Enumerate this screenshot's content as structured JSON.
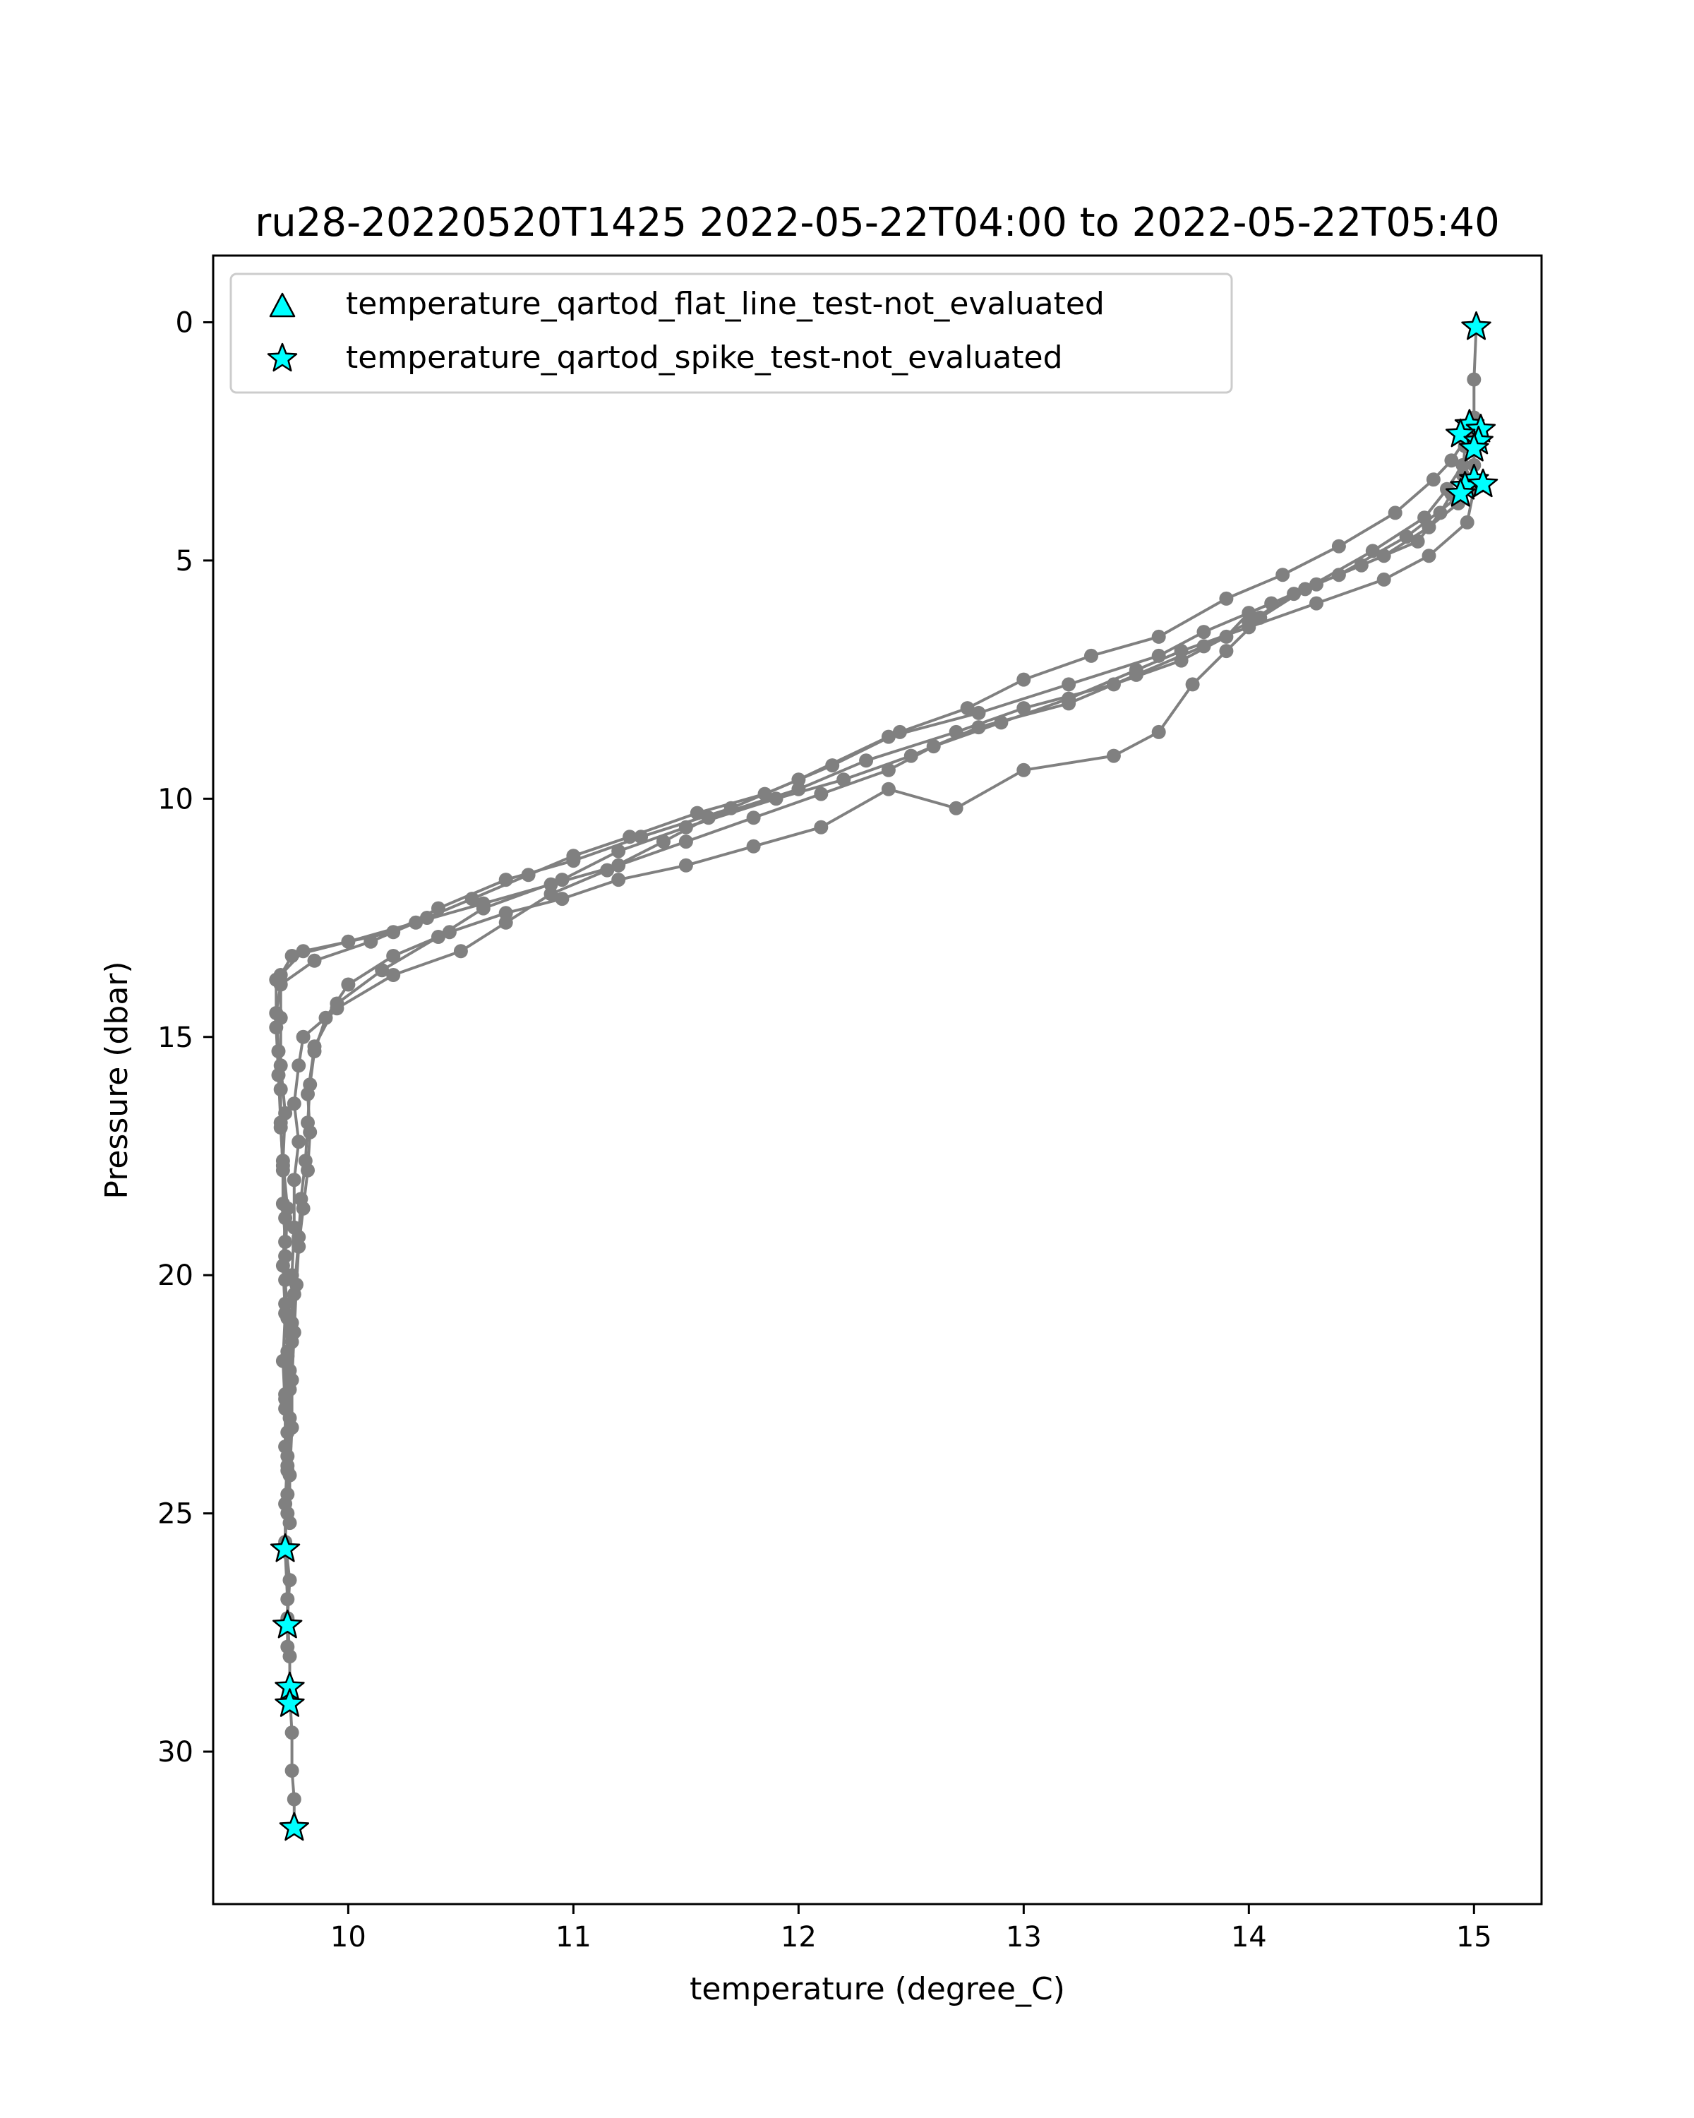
{
  "chart_data": {
    "type": "line",
    "title": "ru28-20220520T1425 2022-05-22T04:00 to 2022-05-22T05:40",
    "xlabel": "temperature (degree_C)",
    "ylabel": "Pressure (dbar)",
    "xlim": [
      9.4,
      15.3
    ],
    "ylim": [
      33.2,
      -1.4
    ],
    "xticks": [
      10,
      11,
      12,
      13,
      14,
      15
    ],
    "yticks": [
      0,
      5,
      10,
      15,
      20,
      25,
      30
    ],
    "xtick_labels": [
      "10",
      "11",
      "12",
      "13",
      "14",
      "15"
    ],
    "ytick_labels": [
      "0",
      "5",
      "10",
      "15",
      "20",
      "25",
      "30"
    ],
    "grid": false,
    "legend_position": "top-left",
    "line_color": "#808080",
    "marker_fill": "#00ffff",
    "legend": [
      {
        "label": "temperature_qartod_flat_line_test-not_evaluated",
        "marker": "triangle"
      },
      {
        "label": "temperature_qartod_spike_test-not_evaluated",
        "marker": "star"
      }
    ],
    "series": [
      {
        "points": [
          [
            15.01,
            0.1
          ],
          [
            15.0,
            1.2
          ],
          [
            15.0,
            2.0
          ],
          [
            15.01,
            2.4
          ],
          [
            15.0,
            2.6
          ],
          [
            15.0,
            3.0
          ],
          [
            15.0,
            3.5
          ],
          [
            14.97,
            4.2
          ],
          [
            14.8,
            4.9
          ],
          [
            14.6,
            5.4
          ],
          [
            14.3,
            5.9
          ],
          [
            14.0,
            6.4
          ],
          [
            13.7,
            6.9
          ],
          [
            13.5,
            7.3
          ],
          [
            13.2,
            7.9
          ],
          [
            12.9,
            8.4
          ],
          [
            12.6,
            8.9
          ],
          [
            12.4,
            9.4
          ],
          [
            12.1,
            9.9
          ],
          [
            11.8,
            10.4
          ],
          [
            11.5,
            10.9
          ],
          [
            11.2,
            11.4
          ],
          [
            10.9,
            11.8
          ],
          [
            10.6,
            12.2
          ],
          [
            10.3,
            12.6
          ],
          [
            10.0,
            13.0
          ],
          [
            9.75,
            13.3
          ],
          [
            9.7,
            13.7
          ],
          [
            9.7,
            14.6
          ],
          [
            9.7,
            15.6
          ],
          [
            9.72,
            16.6
          ],
          [
            9.71,
            17.6
          ],
          [
            9.73,
            18.6
          ],
          [
            9.72,
            19.6
          ],
          [
            9.72,
            20.6
          ],
          [
            9.73,
            21.6
          ],
          [
            9.72,
            22.6
          ],
          [
            9.72,
            23.6
          ],
          [
            9.73,
            24.6
          ],
          [
            9.72,
            25.6
          ],
          [
            9.74,
            26.4
          ],
          [
            9.73,
            27.2
          ],
          [
            9.74,
            28.0
          ],
          [
            9.74,
            28.8
          ],
          [
            9.75,
            29.6
          ],
          [
            9.75,
            30.4
          ],
          [
            9.76,
            31.0
          ],
          [
            9.76,
            31.6
          ]
        ]
      },
      {
        "points": [
          [
            14.98,
            2.2
          ],
          [
            14.96,
            2.6
          ],
          [
            14.95,
            3.2
          ],
          [
            14.92,
            3.7
          ],
          [
            14.7,
            4.5
          ],
          [
            14.4,
            5.3
          ],
          [
            14.1,
            5.9
          ],
          [
            13.8,
            6.5
          ],
          [
            13.6,
            7.0
          ],
          [
            13.2,
            7.6
          ],
          [
            12.8,
            8.2
          ],
          [
            12.4,
            8.7
          ],
          [
            12.0,
            9.6
          ],
          [
            11.7,
            10.2
          ],
          [
            11.3,
            10.8
          ],
          [
            11.0,
            11.3
          ],
          [
            10.7,
            11.7
          ],
          [
            10.4,
            12.3
          ],
          [
            10.2,
            12.8
          ],
          [
            9.8,
            13.2
          ],
          [
            9.68,
            13.8
          ],
          [
            9.68,
            14.8
          ],
          [
            9.69,
            15.8
          ],
          [
            9.7,
            16.8
          ],
          [
            9.71,
            17.8
          ],
          [
            9.72,
            18.8
          ],
          [
            9.71,
            19.8
          ],
          [
            9.72,
            20.8
          ],
          [
            9.71,
            21.8
          ],
          [
            9.72,
            22.8
          ],
          [
            9.73,
            23.8
          ],
          [
            9.72,
            24.8
          ],
          [
            9.72,
            25.8
          ],
          [
            9.73,
            26.8
          ],
          [
            9.73,
            27.8
          ]
        ]
      },
      {
        "points": [
          [
            14.99,
            3.4
          ],
          [
            14.93,
            3.8
          ],
          [
            14.8,
            4.3
          ],
          [
            14.6,
            4.9
          ],
          [
            14.3,
            5.5
          ],
          [
            14.0,
            6.1
          ],
          [
            13.9,
            6.6
          ],
          [
            13.7,
            7.1
          ],
          [
            13.4,
            7.6
          ],
          [
            13.0,
            8.1
          ],
          [
            12.7,
            8.6
          ],
          [
            12.3,
            9.2
          ],
          [
            12.0,
            9.8
          ],
          [
            11.6,
            10.4
          ],
          [
            11.4,
            10.9
          ],
          [
            11.15,
            11.5
          ],
          [
            10.9,
            12.0
          ],
          [
            10.7,
            12.6
          ],
          [
            10.5,
            13.2
          ],
          [
            10.2,
            13.7
          ],
          [
            9.95,
            14.4
          ],
          [
            9.8,
            15.0
          ],
          [
            9.78,
            15.6
          ],
          [
            9.76,
            16.4
          ],
          [
            9.78,
            17.2
          ],
          [
            9.76,
            18.0
          ],
          [
            9.76,
            19.0
          ],
          [
            9.75,
            20.0
          ],
          [
            9.75,
            21.0
          ],
          [
            9.74,
            22.0
          ],
          [
            9.74,
            23.0
          ],
          [
            9.73,
            24.0
          ],
          [
            9.73,
            25.0
          ]
        ]
      },
      {
        "points": [
          [
            14.9,
            3.6
          ],
          [
            14.85,
            4.0
          ],
          [
            14.75,
            4.6
          ],
          [
            14.5,
            5.1
          ],
          [
            14.2,
            5.7
          ],
          [
            14.0,
            6.3
          ],
          [
            13.8,
            6.8
          ],
          [
            13.5,
            7.4
          ],
          [
            13.2,
            8.0
          ],
          [
            12.8,
            8.5
          ],
          [
            12.5,
            9.1
          ],
          [
            12.2,
            9.6
          ],
          [
            11.9,
            10.0
          ],
          [
            11.5,
            10.6
          ],
          [
            11.2,
            11.1
          ],
          [
            10.95,
            11.7
          ],
          [
            10.6,
            12.3
          ],
          [
            10.4,
            12.9
          ],
          [
            10.15,
            13.6
          ],
          [
            9.95,
            14.3
          ],
          [
            9.85,
            15.2
          ],
          [
            9.82,
            16.2
          ],
          [
            9.83,
            17.0
          ],
          [
            9.82,
            17.8
          ],
          [
            9.8,
            18.6
          ],
          [
            9.78,
            19.4
          ],
          [
            9.77,
            20.2
          ],
          [
            9.76,
            21.2
          ],
          [
            9.75,
            22.2
          ],
          [
            9.75,
            23.2
          ],
          [
            9.74,
            24.2
          ],
          [
            9.74,
            25.2
          ]
        ]
      },
      {
        "points": [
          [
            14.95,
            3.0
          ],
          [
            14.88,
            3.5
          ],
          [
            14.78,
            4.1
          ],
          [
            14.55,
            4.8
          ],
          [
            14.25,
            5.6
          ],
          [
            14.05,
            6.2
          ],
          [
            13.9,
            6.9
          ],
          [
            13.75,
            7.6
          ],
          [
            13.6,
            8.6
          ],
          [
            13.4,
            9.1
          ],
          [
            13.0,
            9.4
          ],
          [
            12.7,
            10.2
          ],
          [
            12.4,
            9.8
          ],
          [
            12.1,
            10.6
          ],
          [
            11.8,
            11.0
          ],
          [
            11.5,
            11.4
          ],
          [
            11.2,
            11.7
          ],
          [
            10.95,
            12.1
          ],
          [
            10.7,
            12.4
          ],
          [
            10.45,
            12.8
          ],
          [
            10.2,
            13.3
          ],
          [
            10.0,
            13.9
          ],
          [
            9.9,
            14.6
          ],
          [
            9.85,
            15.3
          ],
          [
            9.83,
            16.0
          ],
          [
            9.82,
            16.8
          ],
          [
            9.81,
            17.6
          ],
          [
            9.79,
            18.4
          ],
          [
            9.78,
            19.2
          ],
          [
            9.76,
            20.4
          ],
          [
            9.75,
            21.4
          ],
          [
            9.74,
            22.4
          ]
        ]
      },
      {
        "points": [
          [
            14.97,
            2.4
          ],
          [
            14.9,
            2.9
          ],
          [
            14.82,
            3.3
          ],
          [
            14.65,
            4.0
          ],
          [
            14.4,
            4.7
          ],
          [
            14.15,
            5.3
          ],
          [
            13.9,
            5.8
          ],
          [
            13.6,
            6.6
          ],
          [
            13.3,
            7.0
          ],
          [
            13.0,
            7.5
          ],
          [
            12.75,
            8.1
          ],
          [
            12.45,
            8.6
          ],
          [
            12.15,
            9.3
          ],
          [
            11.85,
            9.9
          ],
          [
            11.55,
            10.3
          ],
          [
            11.25,
            10.8
          ],
          [
            11.0,
            11.2
          ],
          [
            10.8,
            11.6
          ],
          [
            10.55,
            12.1
          ],
          [
            10.35,
            12.5
          ],
          [
            10.1,
            13.0
          ],
          [
            9.85,
            13.4
          ],
          [
            9.7,
            13.9
          ],
          [
            9.68,
            14.5
          ],
          [
            9.69,
            15.3
          ],
          [
            9.7,
            16.1
          ],
          [
            9.7,
            16.9
          ],
          [
            9.71,
            17.7
          ],
          [
            9.71,
            18.5
          ],
          [
            9.72,
            19.3
          ],
          [
            9.72,
            20.1
          ],
          [
            9.73,
            20.9
          ],
          [
            9.73,
            21.7
          ],
          [
            9.72,
            22.5
          ],
          [
            9.73,
            23.3
          ],
          [
            9.73,
            24.1
          ]
        ]
      }
    ],
    "stars": [
      [
        15.01,
        0.1
      ],
      [
        14.98,
        2.15
      ],
      [
        15.03,
        2.25
      ],
      [
        14.94,
        2.35
      ],
      [
        15.02,
        2.5
      ],
      [
        15.0,
        2.65
      ],
      [
        15.0,
        3.3
      ],
      [
        14.96,
        3.45
      ],
      [
        15.04,
        3.4
      ],
      [
        14.94,
        3.6
      ],
      [
        9.72,
        25.75
      ],
      [
        9.73,
        27.35
      ],
      [
        9.74,
        28.65
      ],
      [
        9.74,
        29.0
      ],
      [
        9.76,
        31.6
      ]
    ]
  }
}
